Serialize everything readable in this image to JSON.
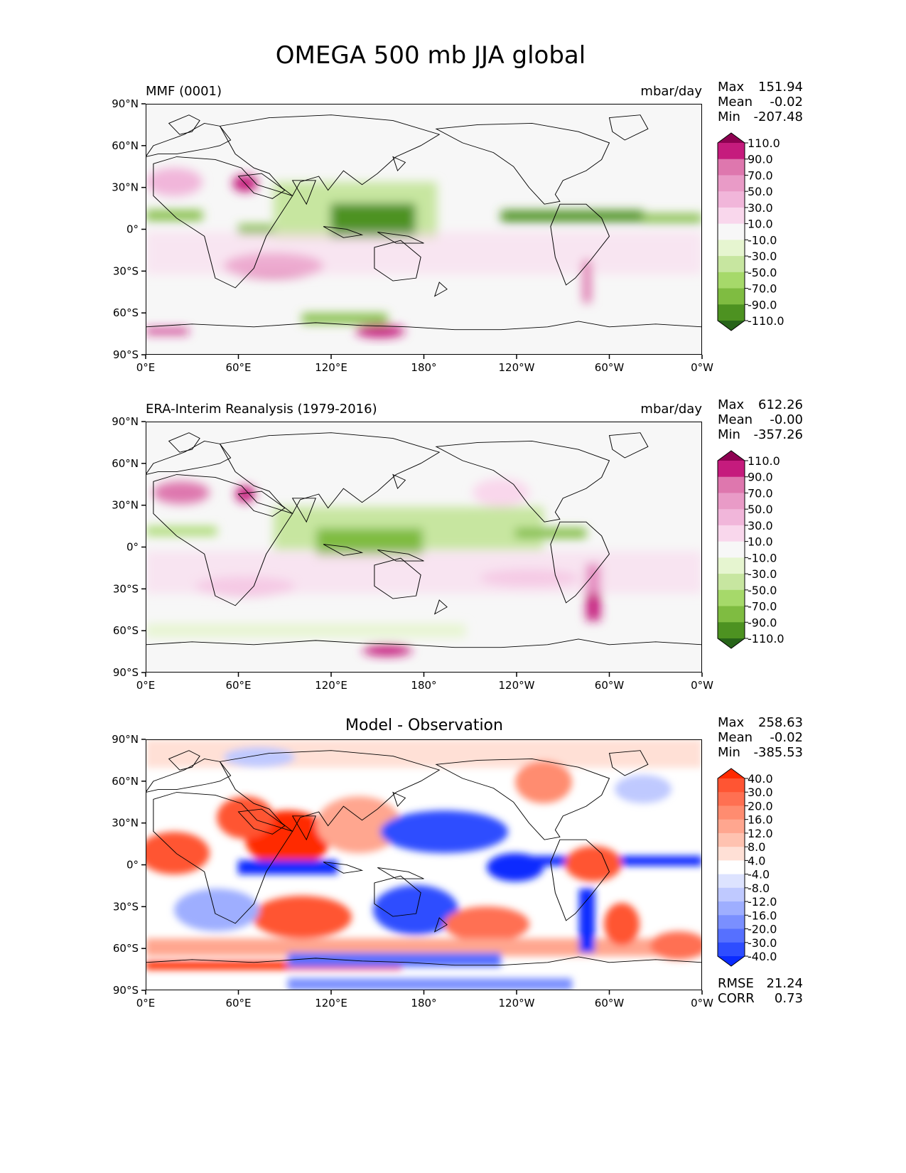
{
  "figure": {
    "title": "OMEGA 500 mb JJA global",
    "xtick_labels": [
      "0°E",
      "60°E",
      "120°E",
      "180°",
      "120°W",
      "60°W",
      "0°W"
    ],
    "ytick_labels": [
      "90°N",
      "60°N",
      "30°N",
      "0°",
      "30°S",
      "60°S",
      "90°S"
    ]
  },
  "chart_data": [
    {
      "type": "heatmap",
      "panel": "model",
      "left_title": "MMF (0001)",
      "right_title": "mbar/day",
      "center_title": "",
      "xlim": [
        0,
        360
      ],
      "ylim": [
        -90,
        90
      ],
      "x_ticks": [
        0,
        60,
        120,
        180,
        240,
        300,
        360
      ],
      "y_ticks": [
        90,
        60,
        30,
        0,
        -30,
        -60,
        -90
      ],
      "stats": [
        {
          "label": "Max",
          "value": "151.94"
        },
        {
          "label": "Mean",
          "value": "-0.02"
        },
        {
          "label": "Min",
          "value": "-207.48"
        }
      ],
      "colorbar": {
        "levels": [
          "110.0",
          "90.0",
          "70.0",
          "50.0",
          "30.0",
          "10.0",
          "-10.0",
          "-30.0",
          "-50.0",
          "-70.0",
          "-90.0",
          "-110.0"
        ],
        "colors": [
          "#8e0152",
          "#c51b7d",
          "#de77ae",
          "#e99bc7",
          "#f1b6da",
          "#f9d7ec",
          "#f7f7f7",
          "#e6f5d0",
          "#c7e6a0",
          "#a6d96a",
          "#7fbc41",
          "#4d9221",
          "#276419"
        ]
      }
    },
    {
      "type": "heatmap",
      "panel": "observation",
      "left_title": "ERA-Interim Reanalysis (1979-2016)",
      "right_title": "mbar/day",
      "center_title": "",
      "xlim": [
        0,
        360
      ],
      "ylim": [
        -90,
        90
      ],
      "x_ticks": [
        0,
        60,
        120,
        180,
        240,
        300,
        360
      ],
      "y_ticks": [
        90,
        60,
        30,
        0,
        -30,
        -60,
        -90
      ],
      "stats": [
        {
          "label": "Max",
          "value": "612.26"
        },
        {
          "label": "Mean",
          "value": "-0.00"
        },
        {
          "label": "Min",
          "value": "-357.26"
        }
      ],
      "colorbar": {
        "levels": [
          "110.0",
          "90.0",
          "70.0",
          "50.0",
          "30.0",
          "10.0",
          "-10.0",
          "-30.0",
          "-50.0",
          "-70.0",
          "-90.0",
          "-110.0"
        ],
        "colors": [
          "#8e0152",
          "#c51b7d",
          "#de77ae",
          "#e99bc7",
          "#f1b6da",
          "#f9d7ec",
          "#f7f7f7",
          "#e6f5d0",
          "#c7e6a0",
          "#a6d96a",
          "#7fbc41",
          "#4d9221",
          "#276419"
        ]
      }
    },
    {
      "type": "heatmap",
      "panel": "difference",
      "left_title": "",
      "right_title": "",
      "center_title": "Model - Observation",
      "xlim": [
        0,
        360
      ],
      "ylim": [
        -90,
        90
      ],
      "x_ticks": [
        0,
        60,
        120,
        180,
        240,
        300,
        360
      ],
      "y_ticks": [
        90,
        60,
        30,
        0,
        -30,
        -60,
        -90
      ],
      "stats": [
        {
          "label": "Max",
          "value": "258.63"
        },
        {
          "label": "Mean",
          "value": "-0.02"
        },
        {
          "label": "Min",
          "value": "-385.53"
        }
      ],
      "footer_stats": [
        {
          "label": "RMSE",
          "value": "21.24"
        },
        {
          "label": "CORR",
          "value": "0.73"
        }
      ],
      "colorbar": {
        "levels": [
          "40.0",
          "30.0",
          "20.0",
          "16.0",
          "12.0",
          "8.0",
          "4.0",
          "-4.0",
          "-8.0",
          "-12.0",
          "-16.0",
          "-20.0",
          "-30.0",
          "-40.0"
        ],
        "colors": [
          "#ff2a00",
          "#ff5533",
          "#ff7052",
          "#ff8c70",
          "#ffa68f",
          "#ffc2b0",
          "#ffe0d6",
          "#ffffff",
          "#dde3ff",
          "#bfc9ff",
          "#9eaeff",
          "#7a8fff",
          "#5670ff",
          "#2e4dff",
          "#0a2bff"
        ]
      }
    }
  ]
}
